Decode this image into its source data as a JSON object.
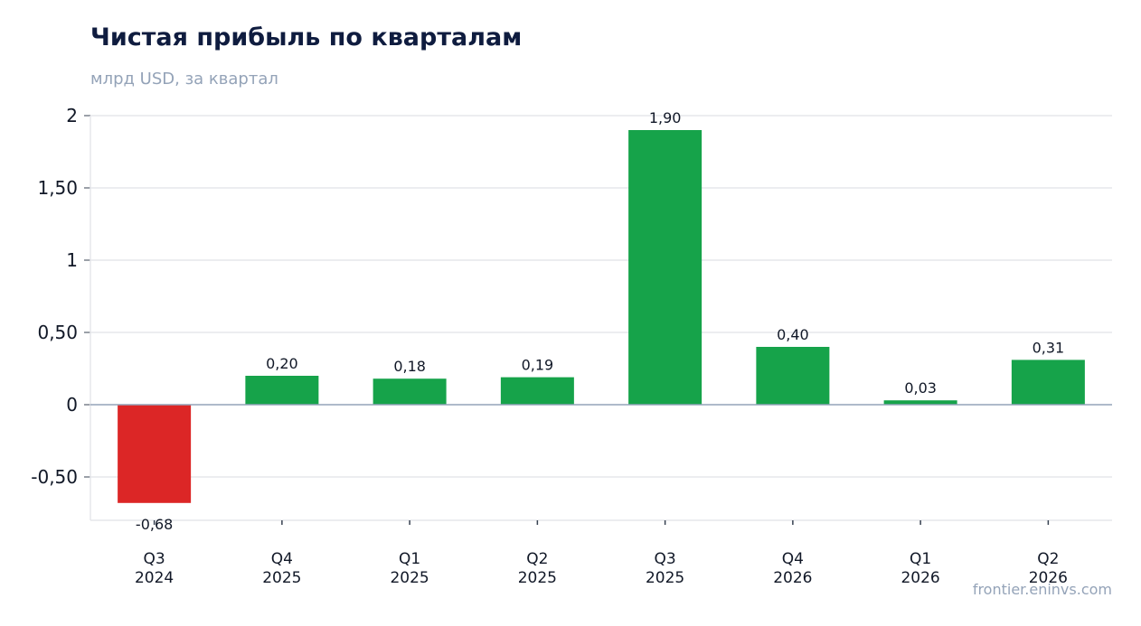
{
  "header": {
    "title": "Чистая прибыль по кварталам",
    "subtitle": "млрд USD, за квартал"
  },
  "footer": {
    "source": "frontier.eninvs.com"
  },
  "colors": {
    "positive": "#16a34a",
    "negative": "#dc2626",
    "grid": "#e5e7eb",
    "zero_line": "#94a3b8"
  },
  "chart_data": {
    "type": "bar",
    "title": "Чистая прибыль по кварталам",
    "subtitle": "млрд USD, за квартал",
    "categories": [
      [
        "Q3",
        "2024"
      ],
      [
        "Q4",
        "2025"
      ],
      [
        "Q1",
        "2025"
      ],
      [
        "Q2",
        "2025"
      ],
      [
        "Q3",
        "2025"
      ],
      [
        "Q4",
        "2026"
      ],
      [
        "Q1",
        "2026"
      ],
      [
        "Q2",
        "2026"
      ]
    ],
    "values": [
      -0.68,
      0.2,
      0.18,
      0.19,
      1.9,
      0.4,
      0.03,
      0.31
    ],
    "value_labels": [
      "-0,68",
      "0,20",
      "0,18",
      "0,19",
      "1,90",
      "0,40",
      "0,03",
      "0,31"
    ],
    "yticks": [
      {
        "value": 2,
        "label": "2"
      },
      {
        "value": 1.5,
        "label": "1,50"
      },
      {
        "value": 1,
        "label": "1"
      },
      {
        "value": 0.5,
        "label": "0,50"
      },
      {
        "value": 0,
        "label": "0"
      },
      {
        "value": -0.5,
        "label": "-0,50"
      }
    ],
    "ylim": [
      -0.8,
      2.0
    ],
    "grid": true,
    "legend": false
  }
}
